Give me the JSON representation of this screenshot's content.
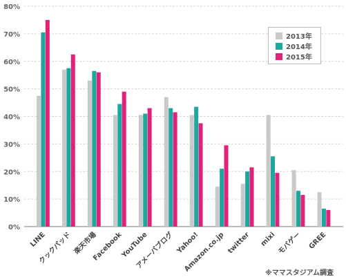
{
  "chart_data": {
    "type": "bar",
    "categories": [
      "LINE",
      "クックパッド",
      "楽天市場",
      "Facebook",
      "YouTube",
      "アメーバブログ",
      "Yahoo!",
      "Amazon.co.jp",
      "twitter",
      "mixi",
      "モバゲー",
      "GREE"
    ],
    "series": [
      {
        "name": "2013年",
        "color": "#c9c9c9",
        "values": [
          47.5,
          57,
          53,
          40.5,
          40.5,
          47,
          40.5,
          14.5,
          15.5,
          40.5,
          20.5,
          12.5
        ]
      },
      {
        "name": "2014年",
        "color": "#1da89f",
        "values": [
          70.5,
          57.5,
          56.5,
          44.5,
          41,
          43,
          43.5,
          21,
          20,
          25.5,
          13,
          6.5
        ]
      },
      {
        "name": "2015年",
        "color": "#e0227a",
        "values": [
          75,
          62.5,
          56,
          49,
          43,
          41.5,
          37.5,
          29.5,
          21.5,
          19.5,
          11.5,
          6
        ]
      }
    ],
    "ylim": [
      0,
      80
    ],
    "yticks": [
      "0%",
      "10%",
      "20%",
      "30%",
      "40%",
      "50%",
      "60%",
      "70%",
      "80%"
    ],
    "grid": true,
    "legend_position": "top-right",
    "xlabel": "",
    "ylabel": "",
    "title": ""
  },
  "source_note": "※ママスタジアム調査"
}
